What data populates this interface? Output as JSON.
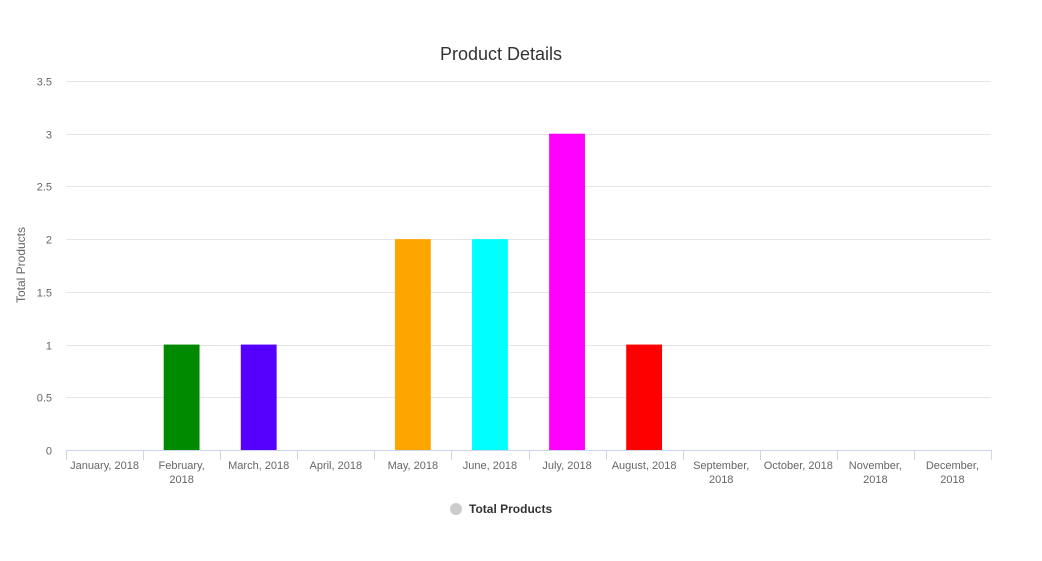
{
  "chart_data": {
    "type": "bar",
    "title": "Product Details",
    "xlabel": "",
    "ylabel": "Total Products",
    "ylim": [
      0,
      3.5
    ],
    "yticks": [
      "0",
      "0.5",
      "1",
      "1.5",
      "2",
      "2.5",
      "3",
      "3.5"
    ],
    "categories": [
      "January, 2018",
      "February, 2018",
      "March, 2018",
      "April, 2018",
      "May, 2018",
      "June, 2018",
      "July, 2018",
      "August, 2018",
      "September, 2018",
      "October, 2018",
      "November, 2018",
      "December, 2018"
    ],
    "category_lines": [
      [
        "January, 2018"
      ],
      [
        "February,",
        "2018"
      ],
      [
        "March, 2018"
      ],
      [
        "April, 2018"
      ],
      [
        "May, 2018"
      ],
      [
        "June, 2018"
      ],
      [
        "July, 2018"
      ],
      [
        "August, 2018"
      ],
      [
        "September,",
        "2018"
      ],
      [
        "October, 2018"
      ],
      [
        "November,",
        "2018"
      ],
      [
        "December,",
        "2018"
      ]
    ],
    "series": [
      {
        "name": "Total Products",
        "values": [
          0,
          1,
          1,
          0,
          2,
          2,
          3,
          1,
          0,
          0,
          0,
          0
        ]
      }
    ],
    "bar_colors": [
      "#7cb5ec",
      "#008a00",
      "#5500ff",
      "#7cb5ec",
      "#ffa500",
      "#00ffff",
      "#ff00ff",
      "#ff0000",
      "#7cb5ec",
      "#7cb5ec",
      "#7cb5ec",
      "#7cb5ec"
    ],
    "grid": true,
    "legend": {
      "position": "bottom-center",
      "marker_color": "#cccccc"
    },
    "colors": {
      "grid": "#e6e6e6",
      "axis": "#ccd6eb",
      "text": "#666666",
      "title": "#333333"
    }
  }
}
